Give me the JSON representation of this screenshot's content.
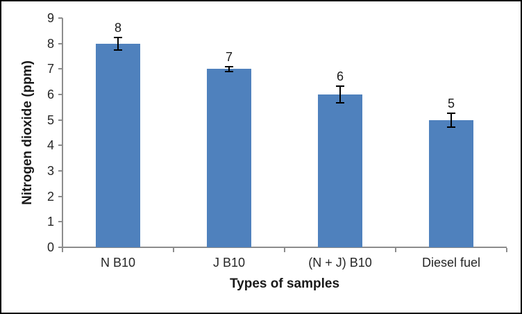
{
  "chart_data": {
    "type": "bar",
    "title": "",
    "categories": [
      "N B10",
      "J B10",
      "(N + J) B10",
      "Diesel fuel"
    ],
    "values": [
      8,
      7,
      6,
      5
    ],
    "data_labels": [
      "8",
      "7",
      "6",
      "5"
    ],
    "errors": [
      0.25,
      0.1,
      0.33,
      0.27
    ],
    "xlabel": "Types of samples",
    "ylabel": "Nitrogen dioxide (ppm)",
    "ylim": [
      0,
      9
    ],
    "ytick_step": 1,
    "ytick_labels": [
      "0",
      "1",
      "2",
      "3",
      "4",
      "5",
      "6",
      "7",
      "8",
      "9"
    ],
    "grid": "off",
    "legend": "none",
    "colors": {
      "bar_fill": "#4F81BD",
      "axis_line": "#8C8C8C",
      "error_bar": "#000000",
      "tick_text": "#262626",
      "title_text": "#1a1a1a",
      "background": "#FFFFFF",
      "border": "#000000"
    }
  }
}
